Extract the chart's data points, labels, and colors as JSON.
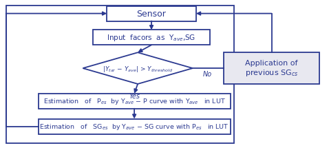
{
  "bg_color": "#ffffff",
  "box_color": "#ffffff",
  "box_edge_color": "#2b3990",
  "arrow_color": "#2b3990",
  "text_color": "#2b3990",
  "title": "Sensor",
  "box1_text": "Input  facors  as  Y$_{ave}$,SG",
  "diamond_line1": "|Y$_{tar}$ − Y$_{ave}$| > Y$_{threshold}$",
  "yes_label": "Yes",
  "no_label": "No",
  "box2_text": "Estimation   of   P$_{es}$  by Y$_{ave}$ − P curve with Y$_{ave}$   in LUT",
  "box3_text": "Estimation   of   SG$_{es}$  by Y$_{ave}$ − SG curve with P$_{es}$   in LUT",
  "side_box_text": "Application of\nprevious SG$_{cs}$",
  "side_box_color": "#e8e8f0",
  "outer_border_color": "#2b3990"
}
